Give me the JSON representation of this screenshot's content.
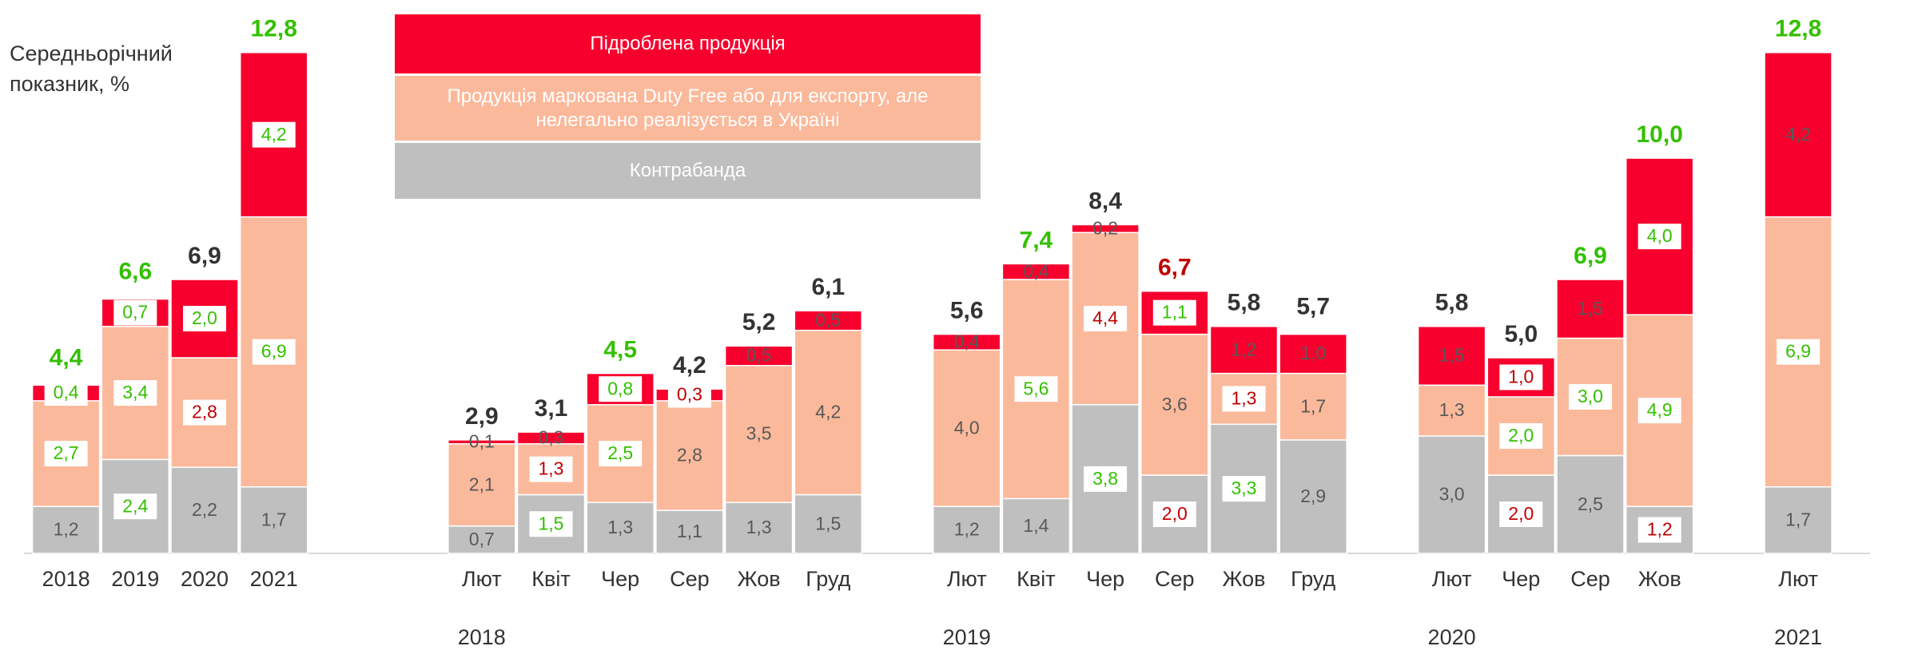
{
  "chart_data": {
    "type": "stacked_bar",
    "y_label": "Середньорічний показник, %",
    "categories": [
      "2018",
      "2019",
      "2020",
      "2021",
      "Лют",
      "Квіт",
      "Чер",
      "Сер",
      "Жов",
      "Груд",
      "Лют",
      "Квіт",
      "Чер",
      "Сер",
      "Жов",
      "Груд",
      "Лют",
      "Чер",
      "Сер",
      "Жов",
      "Лют"
    ],
    "group_labels": [
      "2018",
      "2019",
      "2020",
      "2021"
    ],
    "ylim": [
      0,
      14
    ],
    "value_label_color": "#595959",
    "series": [
      {
        "name": "Контрабанда",
        "color": "#bfbfbf",
        "values": [
          1.2,
          2.4,
          2.2,
          1.7,
          0.7,
          1.5,
          1.3,
          1.1,
          1.3,
          1.5,
          1.2,
          1.4,
          3.8,
          2.0,
          3.3,
          2.9,
          3.0,
          2.0,
          2.5,
          1.2,
          1.7
        ],
        "value_labels": [
          "1,2",
          "2,4",
          "2,2",
          "1,7",
          "0,7",
          "1,5",
          "1,3",
          "1,1",
          "1,3",
          "1,5",
          "1,2",
          "1,4",
          "3,8",
          "2,0",
          "3,3",
          "2,9",
          "3,0",
          "2,0",
          "2,5",
          "1,2",
          "1,7"
        ],
        "label_colors": [
          null,
          "#33c000",
          null,
          null,
          null,
          "#33c000",
          null,
          null,
          null,
          null,
          null,
          null,
          "#33c000",
          "#c00000",
          "#33c000",
          null,
          null,
          "#c00000",
          null,
          "#c00000",
          null
        ]
      },
      {
        "name": "Продукція маркована Duty Free або для експорту, але нелегально реалізується в Україні",
        "color": "#fbb99b",
        "values": [
          2.7,
          3.4,
          2.8,
          6.9,
          2.1,
          1.3,
          2.5,
          2.8,
          3.5,
          4.2,
          4.0,
          5.6,
          4.4,
          3.6,
          1.3,
          1.7,
          1.3,
          2.0,
          3.0,
          4.9,
          6.9
        ],
        "value_labels": [
          "2,7",
          "3,4",
          "2,8",
          "6,9",
          "2,1",
          "1,3",
          "2,5",
          "2,8",
          "3,5",
          "4,2",
          "4,0",
          "5,6",
          "4,4",
          "3,6",
          "1,3",
          "1,7",
          "1,3",
          "2,0",
          "3,0",
          "4,9",
          "6,9"
        ],
        "label_colors": [
          "#33c000",
          "#33c000",
          "#c00000",
          "#33c000",
          null,
          "#c00000",
          "#33c000",
          null,
          null,
          null,
          null,
          "#33c000",
          "#c00000",
          null,
          "#c00000",
          null,
          null,
          "#33c000",
          "#33c000",
          "#33c000",
          "#33c000"
        ]
      },
      {
        "name": "Підроблена продукція",
        "color": "#f7002d",
        "values": [
          0.4,
          0.7,
          2.0,
          4.2,
          0.1,
          0.3,
          0.8,
          0.3,
          0.5,
          0.5,
          0.4,
          0.4,
          0.2,
          1.1,
          1.2,
          1.0,
          1.5,
          1.0,
          1.5,
          4.0,
          4.2
        ],
        "value_labels": [
          "0,4",
          "0,7",
          "2,0",
          "4,2",
          "0,1",
          "0,3",
          "0,8",
          "0,3",
          "0,5",
          "0,5",
          "0,4",
          "0,4",
          "0,2",
          "1,1",
          "1,2",
          "1,0",
          "1,5",
          "1,0",
          "1,5",
          "4,0",
          "4,2"
        ],
        "label_colors": [
          "#33c000",
          "#33c000",
          "#33c000",
          "#33c000",
          null,
          null,
          "#33c000",
          "#c00000",
          null,
          null,
          null,
          null,
          null,
          "#33c000",
          null,
          null,
          null,
          "#c00000",
          null,
          "#33c000",
          null
        ]
      }
    ],
    "totals": [
      4.4,
      6.6,
      6.9,
      12.8,
      2.9,
      3.1,
      4.5,
      4.2,
      5.2,
      6.1,
      5.6,
      7.4,
      8.4,
      6.7,
      5.8,
      5.7,
      5.8,
      5.0,
      6.9,
      10.0,
      12.8
    ],
    "total_labels": [
      "4,4",
      "6,6",
      "6,9",
      "12,8",
      "2,9",
      "3,1",
      "4,5",
      "4,2",
      "5,2",
      "6,1",
      "5,6",
      "7,4",
      "8,4",
      "6,7",
      "5,8",
      "5,7",
      "5,8",
      "5,0",
      "6,9",
      "10,0",
      "12,8"
    ],
    "total_colors": [
      "#33c000",
      "#33c000",
      "#333333",
      "#33c000",
      "#333333",
      "#333333",
      "#33c000",
      "#333333",
      "#333333",
      "#333333",
      "#333333",
      "#33c000",
      "#333333",
      "#c00000",
      "#333333",
      "#333333",
      "#333333",
      "#333333",
      "#33c000",
      "#33c000",
      "#33c000"
    ]
  }
}
